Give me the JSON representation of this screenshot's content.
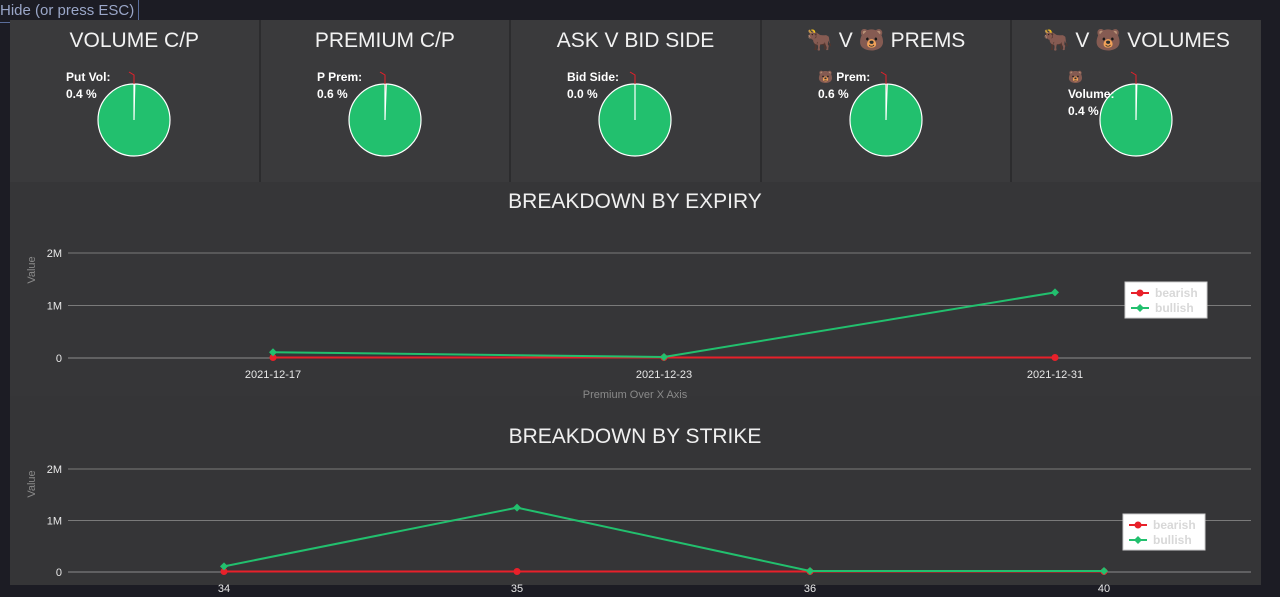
{
  "hide_label": "Hide (or press ESC)",
  "colors": {
    "bullish": "#22c06e",
    "bearish": "#e8202a"
  },
  "pies": [
    {
      "title": "VOLUME C/P",
      "label": "Put Vol:",
      "value": "0.4 %",
      "fraction": 0.004
    },
    {
      "title": "PREMIUM C/P",
      "label": "P Prem:",
      "value": "0.6 %",
      "fraction": 0.006
    },
    {
      "title": "ASK V BID SIDE",
      "label": "Bid Side:",
      "value": "0.0 %",
      "fraction": 0.0
    },
    {
      "title": "🐂 V 🐻 PREMS",
      "label": "🐻 Prem:",
      "value": "0.6 %",
      "fraction": 0.006
    },
    {
      "title": "🐂 V 🐻 VOLUMES",
      "label": "🐻",
      "label2": "Volume:",
      "value": "0.4 %",
      "fraction": 0.004
    }
  ],
  "chart_data": [
    {
      "type": "line",
      "title": "BREAKDOWN BY EXPIRY",
      "xlabel": "Premium Over X Axis",
      "ylabel": "Value",
      "categories": [
        "2021-12-17",
        "2021-12-23",
        "2021-12-31"
      ],
      "yticks": [
        "0",
        "1M",
        "2M"
      ],
      "ylim": [
        0,
        2000000
      ],
      "grid": true,
      "legend": "right",
      "series": [
        {
          "name": "bearish",
          "values": [
            10000,
            10000,
            10000
          ]
        },
        {
          "name": "bullish",
          "values": [
            110000,
            20000,
            1250000
          ]
        }
      ]
    },
    {
      "type": "line",
      "title": "BREAKDOWN BY STRIKE",
      "xlabel": "",
      "ylabel": "Value",
      "categories": [
        "34",
        "35",
        "36",
        "40"
      ],
      "yticks": [
        "0",
        "1M",
        "2M"
      ],
      "ylim": [
        0,
        2000000
      ],
      "grid": true,
      "legend": "right",
      "series": [
        {
          "name": "bearish",
          "values": [
            10000,
            10000,
            10000,
            10000
          ]
        },
        {
          "name": "bullish",
          "values": [
            110000,
            1250000,
            20000,
            20000
          ]
        }
      ]
    }
  ]
}
